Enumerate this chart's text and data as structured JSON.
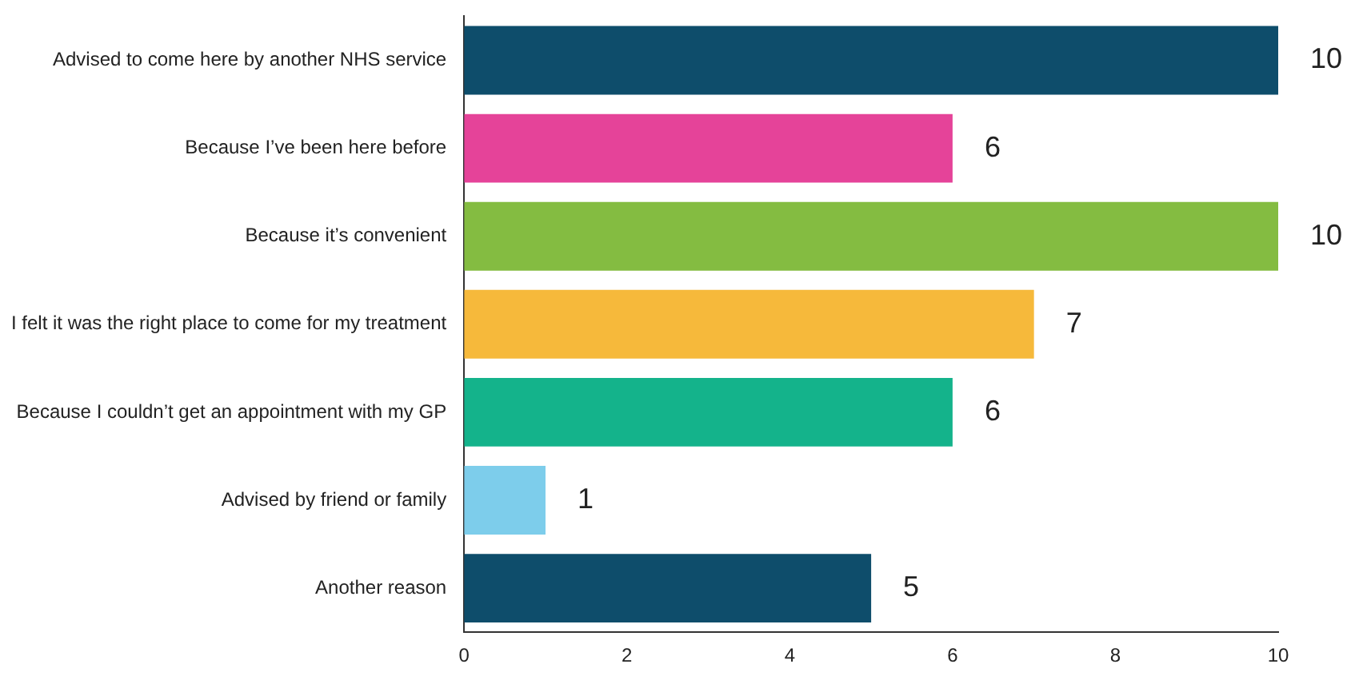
{
  "chart_data": {
    "type": "bar",
    "orientation": "horizontal",
    "categories": [
      "Advised to come here by another NHS service",
      "Because I’ve been here before",
      "Because it’s convenient",
      "I felt it was the right place to come for my treatment",
      "Because I couldn’t get an appointment with my GP",
      "Advised by friend or family",
      "Another reason"
    ],
    "values": [
      10,
      6,
      10,
      7,
      6,
      1,
      5
    ],
    "colors": [
      "#0e4d6b",
      "#e54399",
      "#84bc41",
      "#f6b93b",
      "#14b38b",
      "#7dcdeb",
      "#0e4d6b"
    ],
    "xlim": [
      0,
      10
    ],
    "xticks": [
      0,
      2,
      4,
      6,
      8,
      10
    ],
    "grid": false,
    "legend": false,
    "data_labels": true
  }
}
